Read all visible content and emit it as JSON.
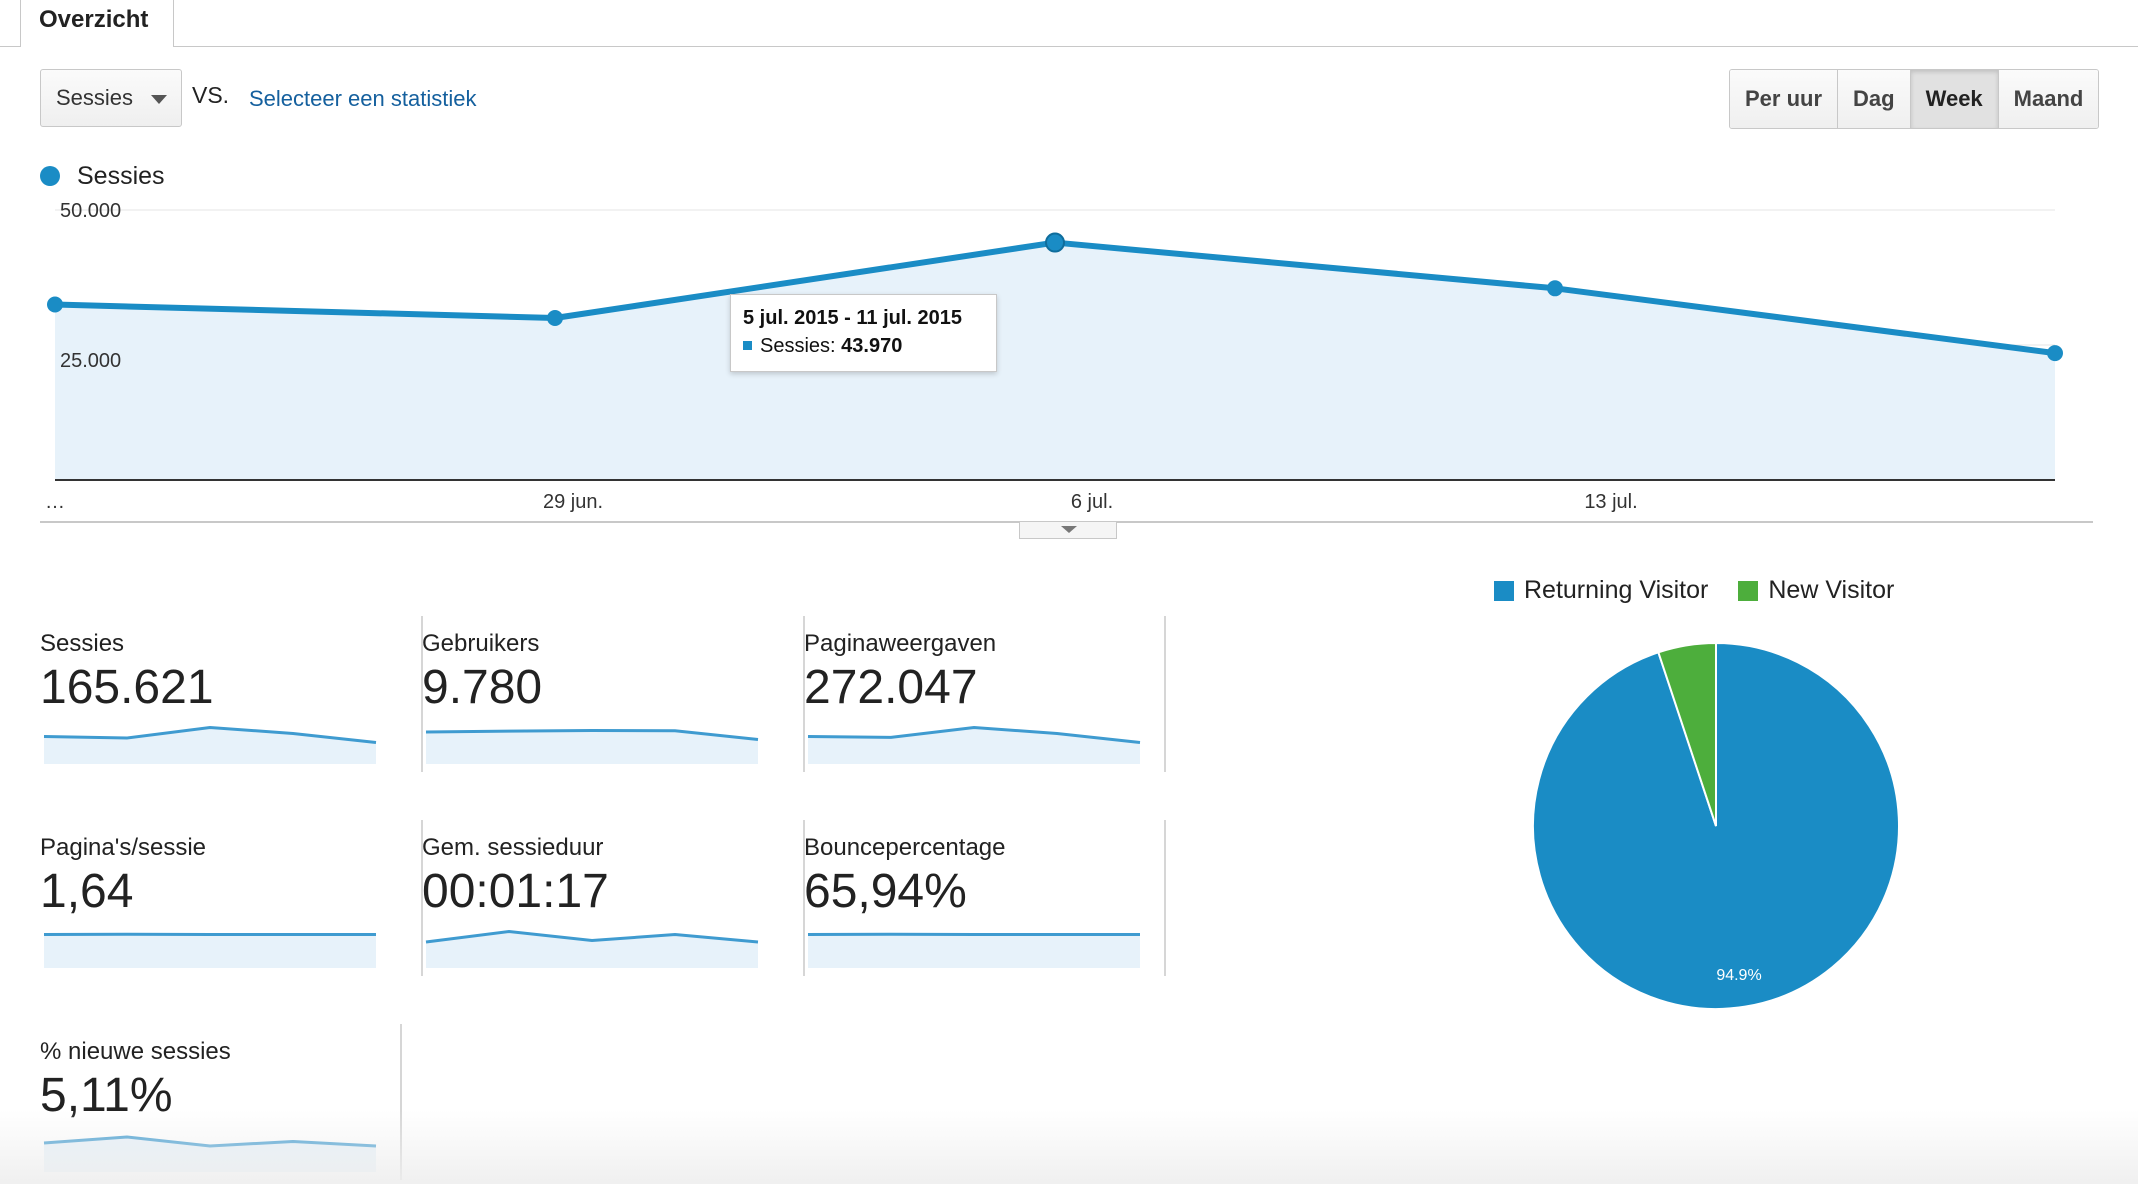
{
  "tab": {
    "label": "Overzicht"
  },
  "toolbar": {
    "metric_select": "Sessies",
    "vs_label": "VS.",
    "compare_link": "Selecteer een statistiek",
    "periods": [
      "Per uur",
      "Dag",
      "Week",
      "Maand"
    ],
    "active_period": "Week"
  },
  "colors": {
    "accent": "#1a8cc5",
    "new_visitor": "#4dae3c",
    "link": "#15609e"
  },
  "main_chart": {
    "legend": "Sessies",
    "tooltip": {
      "title": "5 jul. 2015 - 11 jul. 2015",
      "series": "Sessies:",
      "value": "43.970"
    }
  },
  "chart_data": [
    {
      "type": "area",
      "series": [
        {
          "name": "Sessies",
          "values": [
            32500,
            30000,
            43970,
            35500,
            23500
          ]
        }
      ],
      "x_tick_labels": [
        "…",
        "29 jun.",
        "6 jul.",
        "13 jul."
      ],
      "y_tick_labels": [
        "50.000",
        "25.000"
      ],
      "ylim": [
        0,
        50000
      ],
      "grid": true
    },
    {
      "type": "pie",
      "categories": [
        "Returning Visitor",
        "New Visitor"
      ],
      "values": [
        94.9,
        5.1
      ],
      "data_labels": [
        "94.9%"
      ],
      "colors": [
        "#1a8cc5",
        "#4dae3c"
      ],
      "legend_position": "top"
    }
  ],
  "metrics": [
    {
      "label": "Sessies",
      "value": "165.621",
      "spark": [
        0.65,
        0.6,
        0.95,
        0.75,
        0.45
      ]
    },
    {
      "label": "Gebruikers",
      "value": "9.780",
      "spark": [
        0.8,
        0.83,
        0.85,
        0.84,
        0.55
      ]
    },
    {
      "label": "Paginaweergaven",
      "value": "272.047",
      "spark": [
        0.65,
        0.62,
        0.95,
        0.75,
        0.45
      ]
    },
    {
      "label": "Pagina's/sessie",
      "value": "1,64",
      "spark": [
        0.85,
        0.86,
        0.85,
        0.85,
        0.85
      ]
    },
    {
      "label": "Gem. sessieduur",
      "value": "00:01:17",
      "spark": [
        0.6,
        0.95,
        0.65,
        0.85,
        0.6
      ]
    },
    {
      "label": "Bouncepercentage",
      "value": "65,94%",
      "spark": [
        0.85,
        0.86,
        0.85,
        0.85,
        0.85
      ]
    },
    {
      "label": "% nieuwe sessies",
      "value": "5,11%",
      "spark": [
        0.7,
        0.9,
        0.6,
        0.75,
        0.6
      ]
    }
  ]
}
